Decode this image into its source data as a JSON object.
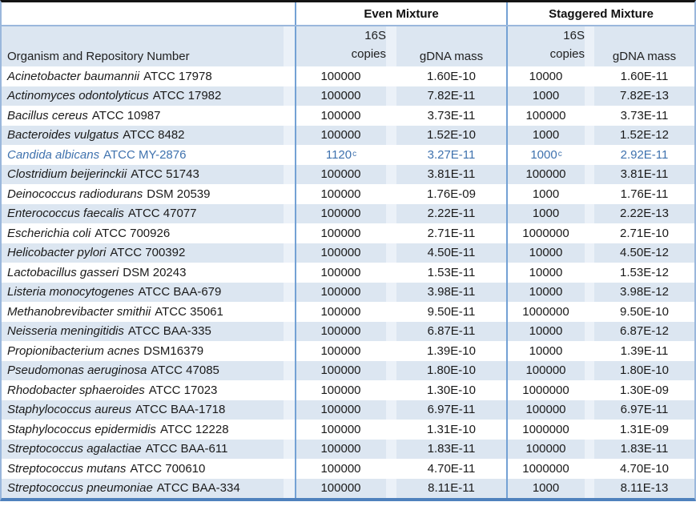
{
  "table": {
    "col_headers": {
      "organism": "Organism and Repository Number",
      "even_group": "Even Mixture",
      "staggered_group": "Staggered Mixture",
      "copies_line1": "16S",
      "copies_line2": "copies",
      "gdna": "gDNA mass"
    },
    "footnote_marker": "c",
    "colors": {
      "band": "#dce6f1",
      "band_spacer": "#ebf1f8",
      "inner_border": "#74a1d4",
      "outer_border": "#9ab7dc",
      "bottom_border": "#4f81bd",
      "top_border": "#141414",
      "highlight_text": "#3f72ae"
    },
    "rows": [
      {
        "name": "Acinetobacter baumannii",
        "repo": "ATCC 17978",
        "even_16s": "100000",
        "even_sup": "",
        "even_gdna": "1.60E-10",
        "stag_16s": "10000",
        "stag_sup": "",
        "stag_gdna": "1.60E-11",
        "highlight": false
      },
      {
        "name": "Actinomyces odontolyticus",
        "repo": "ATCC 17982",
        "even_16s": "100000",
        "even_sup": "",
        "even_gdna": "7.82E-11",
        "stag_16s": "1000",
        "stag_sup": "",
        "stag_gdna": "7.82E-13",
        "highlight": false
      },
      {
        "name": "Bacillus cereus",
        "repo": "ATCC 10987",
        "even_16s": "100000",
        "even_sup": "",
        "even_gdna": "3.73E-11",
        "stag_16s": "100000",
        "stag_sup": "",
        "stag_gdna": "3.73E-11",
        "highlight": false
      },
      {
        "name": "Bacteroides vulgatus",
        "repo": "ATCC 8482",
        "even_16s": "100000",
        "even_sup": "",
        "even_gdna": "1.52E-10",
        "stag_16s": "1000",
        "stag_sup": "",
        "stag_gdna": "1.52E-12",
        "highlight": false
      },
      {
        "name": "Candida albicans",
        "repo": "ATCC MY-2876",
        "even_16s": "1120",
        "even_sup": "c",
        "even_gdna": "3.27E-11",
        "stag_16s": "1000",
        "stag_sup": "c",
        "stag_gdna": "2.92E-11",
        "highlight": true
      },
      {
        "name": "Clostridium beijerinckii",
        "repo": "ATCC 51743",
        "even_16s": "100000",
        "even_sup": "",
        "even_gdna": "3.81E-11",
        "stag_16s": "100000",
        "stag_sup": "",
        "stag_gdna": "3.81E-11",
        "highlight": false
      },
      {
        "name": "Deinococcus radiodurans",
        "repo": "DSM 20539",
        "even_16s": "100000",
        "even_sup": "",
        "even_gdna": "1.76E-09",
        "stag_16s": "1000",
        "stag_sup": "",
        "stag_gdna": "1.76E-11",
        "highlight": false
      },
      {
        "name": "Enterococcus faecalis",
        "repo": "ATCC 47077",
        "even_16s": "100000",
        "even_sup": "",
        "even_gdna": "2.22E-11",
        "stag_16s": "1000",
        "stag_sup": "",
        "stag_gdna": "2.22E-13",
        "highlight": false
      },
      {
        "name": "Escherichia coli",
        "repo": "ATCC 700926",
        "even_16s": "100000",
        "even_sup": "",
        "even_gdna": "2.71E-11",
        "stag_16s": "1000000",
        "stag_sup": "",
        "stag_gdna": "2.71E-10",
        "highlight": false
      },
      {
        "name": "Helicobacter pylori",
        "repo": "ATCC 700392",
        "even_16s": "100000",
        "even_sup": "",
        "even_gdna": "4.50E-11",
        "stag_16s": "10000",
        "stag_sup": "",
        "stag_gdna": "4.50E-12",
        "highlight": false
      },
      {
        "name": "Lactobacillus gasseri",
        "repo": "DSM 20243",
        "even_16s": "100000",
        "even_sup": "",
        "even_gdna": "1.53E-11",
        "stag_16s": "10000",
        "stag_sup": "",
        "stag_gdna": "1.53E-12",
        "highlight": false
      },
      {
        "name": "Listeria monocytogenes",
        "repo": "ATCC BAA-679",
        "even_16s": "100000",
        "even_sup": "",
        "even_gdna": "3.98E-11",
        "stag_16s": "10000",
        "stag_sup": "",
        "stag_gdna": "3.98E-12",
        "highlight": false
      },
      {
        "name": "Methanobrevibacter smithii",
        "repo": "ATCC 35061",
        "even_16s": "100000",
        "even_sup": "",
        "even_gdna": "9.50E-11",
        "stag_16s": "1000000",
        "stag_sup": "",
        "stag_gdna": "9.50E-10",
        "highlight": false
      },
      {
        "name": "Neisseria meningitidis",
        "repo": "ATCC BAA-335",
        "even_16s": "100000",
        "even_sup": "",
        "even_gdna": "6.87E-11",
        "stag_16s": "10000",
        "stag_sup": "",
        "stag_gdna": "6.87E-12",
        "highlight": false
      },
      {
        "name": "Propionibacterium acnes",
        "repo": "DSM16379",
        "even_16s": "100000",
        "even_sup": "",
        "even_gdna": "1.39E-10",
        "stag_16s": "10000",
        "stag_sup": "",
        "stag_gdna": "1.39E-11",
        "highlight": false
      },
      {
        "name": "Pseudomonas aeruginosa",
        "repo": "ATCC 47085",
        "even_16s": "100000",
        "even_sup": "",
        "even_gdna": "1.80E-10",
        "stag_16s": "100000",
        "stag_sup": "",
        "stag_gdna": "1.80E-10",
        "highlight": false
      },
      {
        "name": "Rhodobacter sphaeroides",
        "repo": "ATCC 17023",
        "even_16s": "100000",
        "even_sup": "",
        "even_gdna": "1.30E-10",
        "stag_16s": "1000000",
        "stag_sup": "",
        "stag_gdna": "1.30E-09",
        "highlight": false
      },
      {
        "name": "Staphylococcus aureus",
        "repo": "ATCC BAA-1718",
        "even_16s": "100000",
        "even_sup": "",
        "even_gdna": "6.97E-11",
        "stag_16s": "100000",
        "stag_sup": "",
        "stag_gdna": "6.97E-11",
        "highlight": false
      },
      {
        "name": "Staphylococcus epidermidis",
        "repo": "ATCC 12228",
        "even_16s": "100000",
        "even_sup": "",
        "even_gdna": "1.31E-10",
        "stag_16s": "1000000",
        "stag_sup": "",
        "stag_gdna": "1.31E-09",
        "highlight": false
      },
      {
        "name": "Streptococcus agalactiae",
        "repo": "ATCC BAA-611",
        "even_16s": "100000",
        "even_sup": "",
        "even_gdna": "1.83E-11",
        "stag_16s": "100000",
        "stag_sup": "",
        "stag_gdna": "1.83E-11",
        "highlight": false
      },
      {
        "name": "Streptococcus mutans",
        "repo": "ATCC 700610",
        "even_16s": "100000",
        "even_sup": "",
        "even_gdna": "4.70E-11",
        "stag_16s": "1000000",
        "stag_sup": "",
        "stag_gdna": "4.70E-10",
        "highlight": false
      },
      {
        "name": "Streptococcus pneumoniae",
        "repo": "ATCC BAA-334",
        "even_16s": "100000",
        "even_sup": "",
        "even_gdna": "8.11E-11",
        "stag_16s": "1000",
        "stag_sup": "",
        "stag_gdna": "8.11E-13",
        "highlight": false
      }
    ]
  }
}
